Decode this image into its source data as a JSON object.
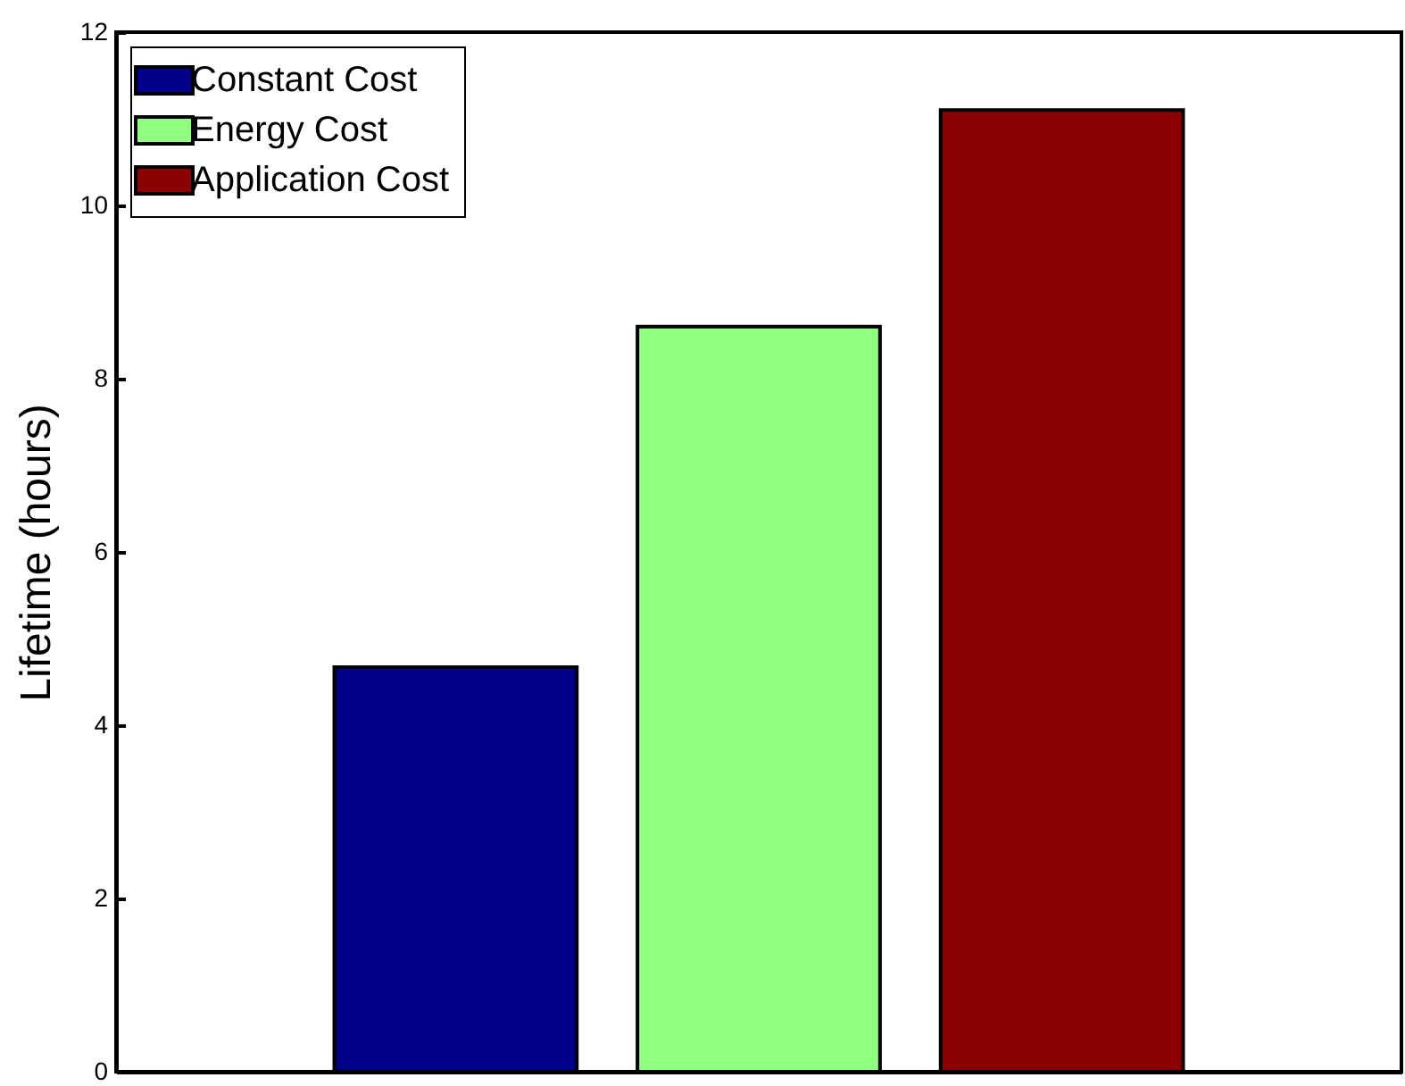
{
  "chart_data": {
    "type": "bar",
    "ylabel": "Lifetime (hours)",
    "categories": [
      null,
      null,
      null
    ],
    "series": [
      {
        "name": "Constant Cost",
        "color": "#00008b",
        "values": [
          4.67,
          null,
          null
        ]
      },
      {
        "name": "Energy Cost",
        "color": "#90ff80",
        "values": [
          null,
          8.6,
          null
        ]
      },
      {
        "name": "Application Cost",
        "color": "#8b0000",
        "values": [
          null,
          null,
          11.1
        ]
      }
    ],
    "ylim": [
      0,
      12
    ],
    "yticks": [
      0,
      2,
      4,
      6,
      8,
      10,
      12
    ],
    "legend": "top left",
    "tick_labels": "y"
  }
}
